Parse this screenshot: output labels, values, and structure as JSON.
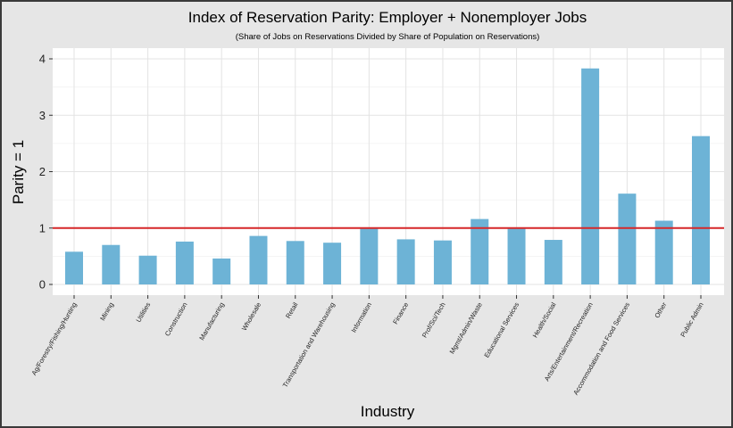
{
  "chart_data": {
    "type": "bar",
    "title": "Index of Reservation Parity: Employer + Nonemployer Jobs",
    "subtitle": "(Share of Jobs on Reservations Divided by Share of Population on Reservations)",
    "xlabel": "Industry",
    "ylabel": "Parity = 1",
    "ylim": [
      0,
      4
    ],
    "yticks": [
      0,
      1,
      2,
      3,
      4
    ],
    "grid": true,
    "reference_line": {
      "y": 1,
      "color": "#d62728"
    },
    "bar_color": "#6db3d6",
    "categories": [
      "Ag/Forestry/Fishing/Hunting",
      "Mining",
      "Utilities",
      "Construction",
      "Manufacturing",
      "Wholesale",
      "Retail",
      "Transportation and Warehousing",
      "Information",
      "Finance",
      "Prof/Sci/Tech",
      "Mgmt/Admin/Waste",
      "Educational Services",
      "Health/Social",
      "Arts/Entertainment/Recreation",
      "Accommodation and Food Services",
      "Other",
      "Public Admin"
    ],
    "values": [
      0.58,
      0.7,
      0.51,
      0.76,
      0.46,
      0.86,
      0.77,
      0.74,
      1.01,
      0.8,
      0.78,
      1.16,
      1.0,
      0.79,
      3.83,
      1.61,
      1.13,
      2.63
    ]
  }
}
